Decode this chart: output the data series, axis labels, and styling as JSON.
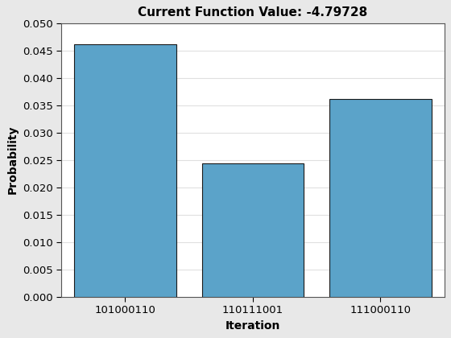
{
  "title": "Current Function Value: -4.79728",
  "xlabel": "Iteration",
  "ylabel": "Probability",
  "categories": [
    "101000110",
    "110111001",
    "111000110"
  ],
  "values": [
    0.0461,
    0.0244,
    0.0361
  ],
  "bar_color": "#5BA3C9",
  "bar_edge_color": "#1a1a1a",
  "bar_edge_width": 0.8,
  "ylim": [
    0,
    0.05
  ],
  "yticks": [
    0,
    0.005,
    0.01,
    0.015,
    0.02,
    0.025,
    0.03,
    0.035,
    0.04,
    0.045,
    0.05
  ],
  "figure_background_color": "#E8E8E8",
  "axes_background_color": "#FFFFFF",
  "grid_color": "#E0E0E0",
  "title_fontsize": 11,
  "label_fontsize": 10,
  "tick_fontsize": 9.5,
  "bar_width": 0.8
}
